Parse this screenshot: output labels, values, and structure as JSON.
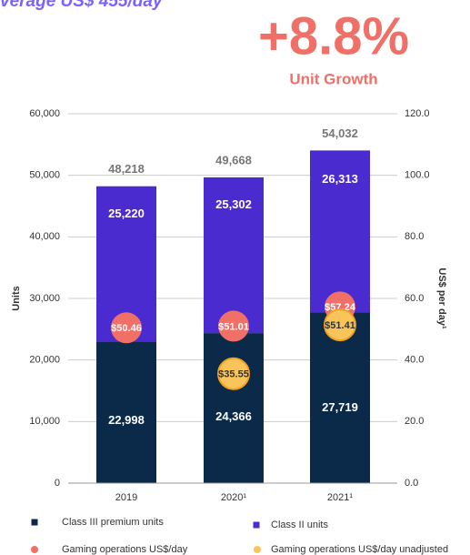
{
  "chart_data": {
    "type": "bar",
    "headline": "verage US$ 455/day",
    "growth": "+8.8%",
    "growth_label": "Unit Growth",
    "categories": [
      "2019",
      "2020¹",
      "2021¹"
    ],
    "stacked": true,
    "series": [
      {
        "name": "Class III premium units",
        "color": "#0b2a4a",
        "values": [
          22998,
          24366,
          27719
        ],
        "value_labels": [
          "22,998",
          "24,366",
          "27,719"
        ]
      },
      {
        "name": "Class II units",
        "color": "#4a2bd0",
        "values": [
          25220,
          25302,
          26313
        ],
        "value_labels": [
          "25,220",
          "25,302",
          "26,313"
        ]
      },
      {
        "name": "Gaming operations US$/day",
        "type": "scatter",
        "axis": "y2",
        "color": "#f07068",
        "values": [
          50.46,
          51.01,
          57.24
        ],
        "value_labels": [
          "$50.46",
          "$51.01",
          "$57.24"
        ]
      },
      {
        "name": "Gaming operations US$/day unadjusted",
        "type": "scatter",
        "axis": "y2",
        "color": "#f9c55a",
        "values": [
          null,
          35.55,
          51.41
        ],
        "value_labels": [
          null,
          "$35.55",
          "$51.41"
        ]
      }
    ],
    "total_labels": [
      "48,218",
      "49,668",
      "54,032"
    ],
    "ylabel": "Units",
    "y2label": "US$ per day¹",
    "ylim": [
      0,
      60000
    ],
    "yticks": [
      0,
      {
        "value": 10000,
        "label": "10,000"
      },
      {
        "value": 20000,
        "label": "20,000"
      },
      {
        "value": 30000,
        "label": "30,000"
      },
      {
        "value": 40000,
        "label": "40,000"
      },
      {
        "value": 50000,
        "label": "50,000"
      },
      {
        "value": 60000,
        "label": "60,000"
      }
    ],
    "y2lim": [
      0,
      120
    ],
    "y2ticks": [
      {
        "value": 0,
        "label": "0.0"
      },
      {
        "value": 20,
        "label": "20.0"
      },
      {
        "value": 40,
        "label": "40.0"
      },
      {
        "value": 60,
        "label": "60.0"
      },
      {
        "value": 80,
        "label": "80.0"
      },
      {
        "value": 100,
        "label": "100.0"
      },
      {
        "value": 120,
        "label": "120.0"
      }
    ],
    "grid": true
  }
}
